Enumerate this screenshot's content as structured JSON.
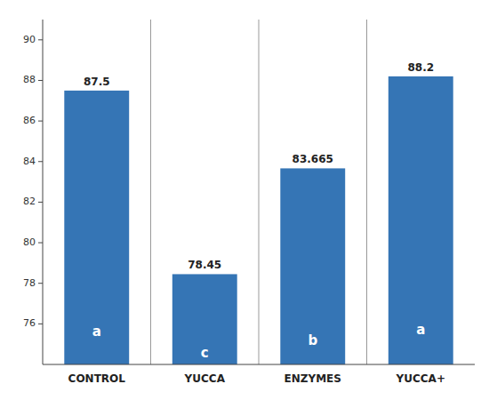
{
  "chart_data": {
    "type": "bar",
    "categories": [
      "CONTROL",
      "YUCCA",
      "ENZYMES",
      "YUCCA+"
    ],
    "values": [
      87.5,
      78.45,
      83.665,
      88.2
    ],
    "annotations": [
      "a",
      "c",
      "b",
      "a"
    ],
    "color": "#3575B5",
    "ylim": [
      74,
      91
    ],
    "yticks": [
      76,
      78,
      80,
      82,
      84,
      86,
      88,
      90
    ],
    "grid": false,
    "data_labels": true
  }
}
